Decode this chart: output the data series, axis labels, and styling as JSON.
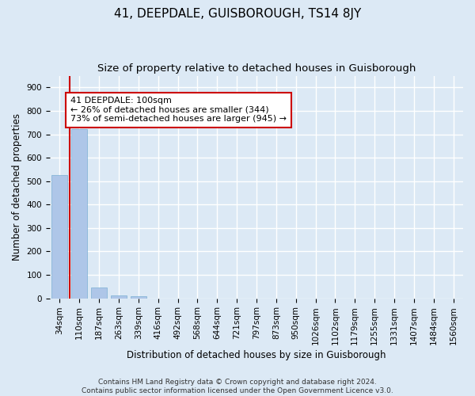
{
  "title": "41, DEEPDALE, GUISBOROUGH, TS14 8JY",
  "subtitle": "Size of property relative to detached houses in Guisborough",
  "xlabel": "Distribution of detached houses by size in Guisborough",
  "ylabel": "Number of detached properties",
  "bar_labels": [
    "34sqm",
    "110sqm",
    "187sqm",
    "263sqm",
    "339sqm",
    "416sqm",
    "492sqm",
    "568sqm",
    "644sqm",
    "721sqm",
    "797sqm",
    "873sqm",
    "950sqm",
    "1026sqm",
    "1102sqm",
    "1179sqm",
    "1255sqm",
    "1331sqm",
    "1407sqm",
    "1484sqm",
    "1560sqm"
  ],
  "bar_values": [
    525,
    722,
    46,
    11,
    10,
    0,
    0,
    0,
    0,
    0,
    0,
    0,
    0,
    0,
    0,
    0,
    0,
    0,
    0,
    0,
    0
  ],
  "bar_color": "#aec6e8",
  "bar_edge_color": "#7bafd4",
  "property_line_color": "#cc0000",
  "annotation_text": "41 DEEPDALE: 100sqm\n← 26% of detached houses are smaller (344)\n73% of semi-detached houses are larger (945) →",
  "annotation_box_color": "#ffffff",
  "annotation_box_edge_color": "#cc0000",
  "ylim": [
    0,
    950
  ],
  "yticks": [
    0,
    100,
    200,
    300,
    400,
    500,
    600,
    700,
    800,
    900
  ],
  "background_color": "#dce9f5",
  "plot_bg_color": "#dce9f5",
  "grid_color": "#ffffff",
  "footer": "Contains HM Land Registry data © Crown copyright and database right 2024.\nContains public sector information licensed under the Open Government Licence v3.0.",
  "title_fontsize": 11,
  "subtitle_fontsize": 9.5,
  "label_fontsize": 8.5,
  "tick_fontsize": 7.5,
  "annotation_fontsize": 8,
  "footer_fontsize": 6.5
}
